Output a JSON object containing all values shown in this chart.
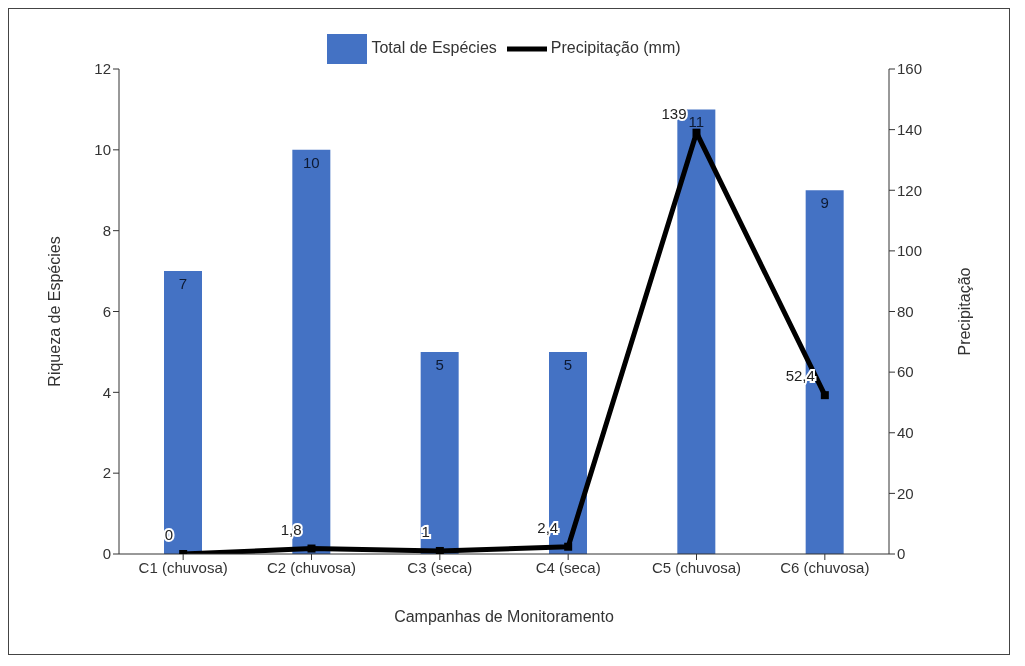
{
  "chart_data": {
    "type": "bar",
    "xlabel": "Campanhas de Monitoramento",
    "ylabel": "Riqueza de Espécies",
    "y2label": "Precipitação",
    "categories": [
      "C1 (chuvosa)",
      "C2 (chuvosa)",
      "C3 (seca)",
      "C4 (seca)",
      "C5 (chuvosa)",
      "C6 (chuvosa)"
    ],
    "series": [
      {
        "name": "Total de Espécies",
        "color": "#4472c4",
        "values": [
          7,
          10,
          5,
          5,
          11,
          9
        ],
        "value_labels": [
          "7",
          "10",
          "5",
          "5",
          "11",
          "9"
        ]
      },
      {
        "name": "Precipitação (mm)",
        "type": "line",
        "axis": "y2",
        "color": "#000000",
        "marker": "square",
        "values": [
          0,
          1.8,
          1,
          2.4,
          139,
          52.4
        ],
        "value_labels": [
          "0",
          "1,8",
          "1",
          "2,4",
          "139",
          "52,4"
        ]
      }
    ],
    "ylim": [
      0,
      12
    ],
    "yticks": [
      0,
      2,
      4,
      6,
      8,
      10,
      12
    ],
    "y2lim": [
      0,
      160
    ],
    "y2ticks": [
      0,
      20,
      40,
      60,
      80,
      100,
      120,
      140,
      160
    ],
    "legend": "top"
  }
}
